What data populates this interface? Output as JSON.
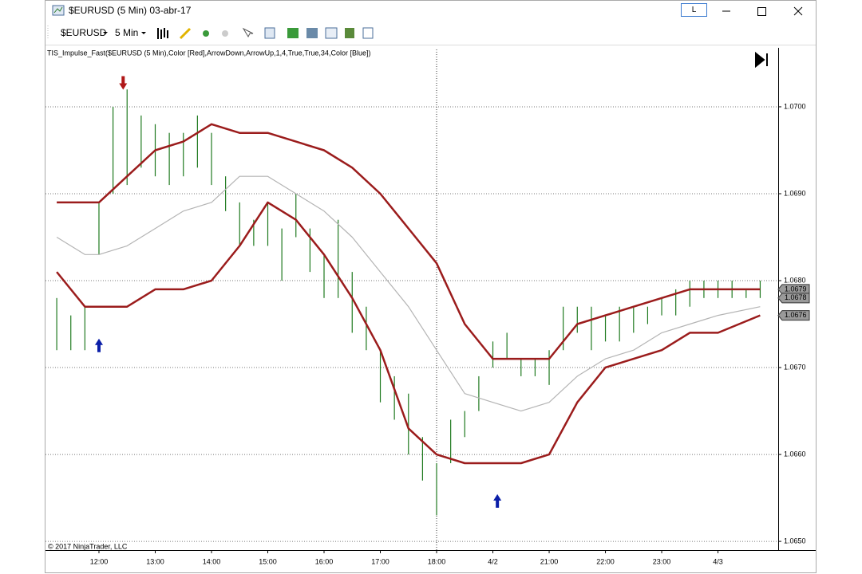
{
  "window": {
    "title": "$EURUSD (5 Min)  03-abr-17",
    "mode_button": "L"
  },
  "toolbar": {
    "instrument": "$EURUSD",
    "interval": "5 Min"
  },
  "chart_data": {
    "type": "ohlc",
    "indicator_label": "TIS_Impulse_Fast($EURUSD (5 Min),Color [Red],ArrowDown,ArrowUp,1,4,True,True,34,Color [Blue])",
    "copyright": "© 2017 NinjaTrader, LLC",
    "bar_color": "#1f7a1f",
    "x": [
      -0.75,
      -0.5,
      -0.25,
      0,
      0.25,
      0.5,
      0.75,
      1,
      1.25,
      1.5,
      1.75,
      2,
      2.25,
      2.5,
      2.75,
      3,
      3.25,
      3.5,
      3.75,
      4,
      4.25,
      4.5,
      4.75,
      5,
      5.25,
      5.5,
      5.75,
      6,
      6.25,
      6.5,
      6.75,
      7,
      7.25,
      7.5,
      7.75,
      8,
      8.25,
      8.5,
      8.75,
      9,
      9.25,
      9.5,
      9.75,
      10,
      10.25,
      10.5,
      10.75,
      11,
      11.25,
      11.5,
      11.75
    ],
    "high": [
      1.0678,
      1.0676,
      1.0677,
      1.0689,
      1.07,
      1.0702,
      1.0699,
      1.0698,
      1.0697,
      1.0697,
      1.0699,
      1.0697,
      1.0692,
      1.0689,
      1.0687,
      1.0689,
      1.0686,
      1.069,
      1.0686,
      1.0683,
      1.0687,
      1.0681,
      1.0677,
      1.0672,
      1.0669,
      1.0667,
      1.0662,
      1.0659,
      1.0664,
      1.0665,
      1.0669,
      1.0673,
      1.0674,
      1.0671,
      1.0671,
      1.0672,
      1.0677,
      1.0677,
      1.0677,
      1.0676,
      1.0677,
      1.0677,
      1.0677,
      1.0678,
      1.0679,
      1.068,
      1.068,
      1.068,
      1.068,
      1.0679,
      1.068
    ],
    "low": [
      1.0672,
      1.0672,
      1.0672,
      1.0683,
      1.069,
      1.0691,
      1.0693,
      1.0692,
      1.0691,
      1.0692,
      1.0693,
      1.0691,
      1.0688,
      1.0684,
      1.0684,
      1.0684,
      1.068,
      1.0685,
      1.0681,
      1.0678,
      1.0678,
      1.0674,
      1.0672,
      1.0666,
      1.0664,
      1.066,
      1.0657,
      1.0653,
      1.0659,
      1.0662,
      1.0665,
      1.067,
      1.0671,
      1.0669,
      1.0669,
      1.0668,
      1.0672,
      1.0674,
      1.0672,
      1.0673,
      1.0673,
      1.0674,
      1.0675,
      1.0676,
      1.0676,
      1.0677,
      1.0678,
      1.0678,
      1.0678,
      1.0678,
      1.0678
    ],
    "line_x": [
      -0.75,
      -0.25,
      0,
      0.5,
      1,
      1.5,
      2,
      2.5,
      3,
      3.5,
      4,
      4.5,
      5,
      5.5,
      6,
      6.5,
      7,
      7.5,
      8,
      8.5,
      9,
      9.5,
      10,
      10.5,
      11,
      11.75
    ],
    "lines": [
      {
        "color": "#9b1c1c",
        "values": [
          1.0689,
          1.0689,
          1.0689,
          1.0692,
          1.0695,
          1.0696,
          1.0698,
          1.0697,
          1.0697,
          1.0696,
          1.0695,
          1.0693,
          1.069,
          1.0686,
          1.0682,
          1.0675,
          1.0671,
          1.0671,
          1.0671,
          1.0675,
          1.0676,
          1.0677,
          1.0678,
          1.0679,
          1.0679,
          1.0679
        ]
      },
      {
        "color": "#b4b4b4",
        "values": [
          1.0685,
          1.0683,
          1.0683,
          1.0684,
          1.0686,
          1.0688,
          1.0689,
          1.0692,
          1.0692,
          1.069,
          1.0688,
          1.0685,
          1.0681,
          1.0677,
          1.0672,
          1.0667,
          1.0666,
          1.0665,
          1.0666,
          1.0669,
          1.0671,
          1.0672,
          1.0674,
          1.0675,
          1.0676,
          1.0677
        ]
      },
      {
        "color": "#9b1c1c",
        "values": [
          1.0681,
          1.0677,
          1.0677,
          1.0677,
          1.0679,
          1.0679,
          1.068,
          1.0684,
          1.0689,
          1.0687,
          1.0683,
          1.0678,
          1.0672,
          1.0663,
          1.066,
          1.0659,
          1.0659,
          1.0659,
          1.066,
          1.0666,
          1.067,
          1.0671,
          1.0672,
          1.0674,
          1.0674,
          1.0676
        ]
      }
    ],
    "arrows": [
      {
        "x": 0.43,
        "y": 1.07027,
        "direction": "down",
        "color": "#b01818"
      },
      {
        "x": 0,
        "y": 1.06726,
        "direction": "up",
        "color": "#0a1ea8"
      },
      {
        "x": 7.08,
        "y": 1.06547,
        "direction": "up",
        "color": "#0a1ea8"
      }
    ],
    "crosshair_x": 6,
    "price_markers": [
      1.0679,
      1.0678,
      1.0676
    ],
    "xlim": [
      -0.95,
      12.07
    ],
    "ylim": [
      1.0649,
      1.07066
    ],
    "xticks": [
      {
        "value": 0,
        "label": "12:00"
      },
      {
        "value": 1,
        "label": "13:00"
      },
      {
        "value": 2,
        "label": "14:00"
      },
      {
        "value": 3,
        "label": "15:00"
      },
      {
        "value": 4,
        "label": "16:00"
      },
      {
        "value": 5,
        "label": "17:00"
      },
      {
        "value": 6,
        "label": "18:00"
      },
      {
        "value": 7,
        "label": "4/2"
      },
      {
        "value": 8,
        "label": "21:00"
      },
      {
        "value": 9,
        "label": "22:00"
      },
      {
        "value": 10,
        "label": "23:00"
      },
      {
        "value": 11,
        "label": "4/3"
      }
    ],
    "yticks": [
      {
        "value": 1.065,
        "label": "1.0650"
      },
      {
        "value": 1.066,
        "label": "1.0660"
      },
      {
        "value": 1.067,
        "label": "1.0670"
      },
      {
        "value": 1.068,
        "label": "1.0680"
      },
      {
        "value": 1.069,
        "label": "1.0690"
      },
      {
        "value": 1.07,
        "label": "1.0700"
      }
    ],
    "grid": true
  }
}
